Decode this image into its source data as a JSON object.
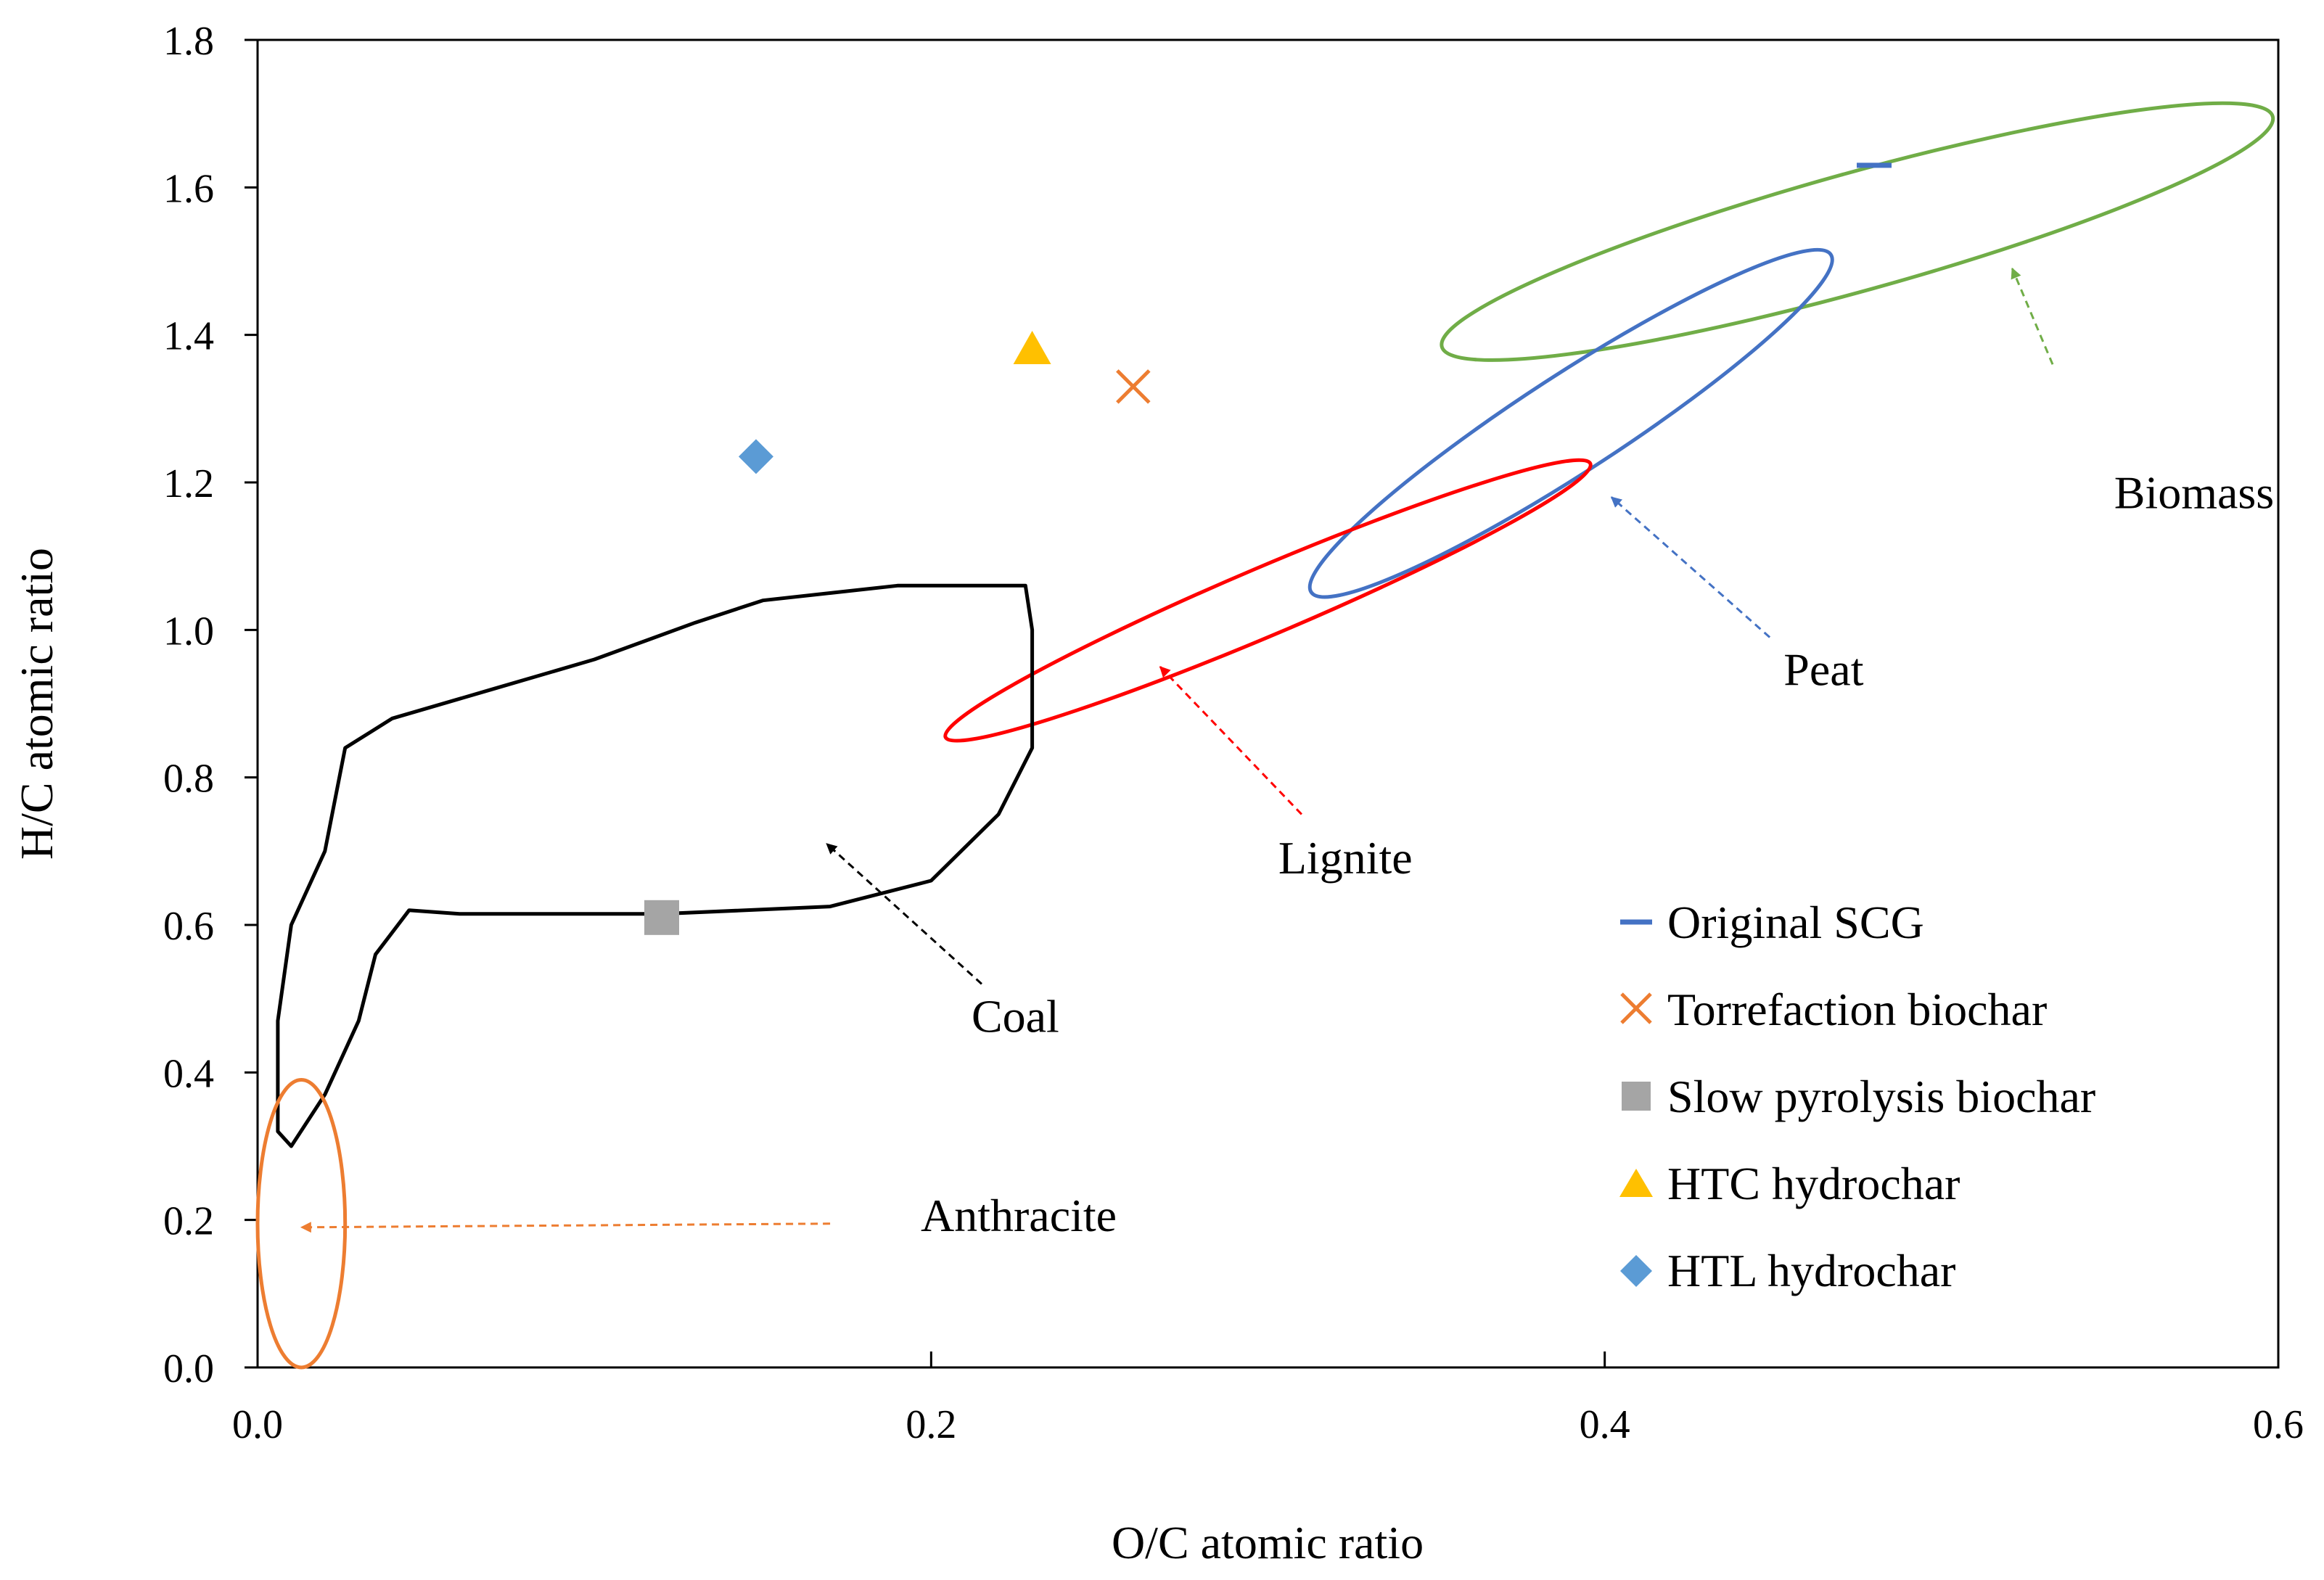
{
  "chart_data": {
    "type": "scatter",
    "title": "",
    "xlabel": "O/C atomic ratio",
    "ylabel": "H/C atomic ratio",
    "xlim": [
      0.0,
      0.6
    ],
    "ylim": [
      0.0,
      1.8
    ],
    "xticks": [
      0.0,
      0.2,
      0.4,
      0.6
    ],
    "xtick_labels": [
      "0.0",
      "0.2",
      "0.4",
      "0.6"
    ],
    "yticks": [
      0.0,
      0.2,
      0.4,
      0.6,
      0.8,
      1.0,
      1.2,
      1.4,
      1.6,
      1.8
    ],
    "ytick_labels": [
      "0.0",
      "0.2",
      "0.4",
      "0.6",
      "0.8",
      "1.0",
      "1.2",
      "1.4",
      "1.6",
      "1.8"
    ],
    "grid": false,
    "legend_position": "bottom-right",
    "series": [
      {
        "name": "Original SCG",
        "marker": "dash",
        "color": "#4472c4",
        "x": [
          0.48
        ],
        "y": [
          1.63
        ]
      },
      {
        "name": "Torrefaction biochar",
        "marker": "x",
        "color": "#ed7d31",
        "x": [
          0.26
        ],
        "y": [
          1.33
        ]
      },
      {
        "name": "Slow pyrolysis biochar",
        "marker": "square",
        "color": "#a5a5a5",
        "x": [
          0.12
        ],
        "y": [
          0.61
        ]
      },
      {
        "name": "HTC hydrochar",
        "marker": "triangle",
        "color": "#ffc000",
        "x": [
          0.23
        ],
        "y": [
          1.38
        ]
      },
      {
        "name": "HTL hydrochar",
        "marker": "diamond",
        "color": "#5b9bd5",
        "x": [
          0.148
        ],
        "y": [
          1.235
        ]
      }
    ],
    "regions": [
      {
        "name": "Biomass",
        "shape": "ellipse",
        "color": "#70ad47",
        "center": [
          0.475,
          1.54
        ],
        "rx": 0.128,
        "ry": 0.08,
        "angle": -15.5,
        "label_xy": [
          0.575,
          1.165
        ],
        "arrow_from": [
          0.533,
          1.36
        ],
        "arrow_to": [
          0.521,
          1.49
        ]
      },
      {
        "name": "Peat",
        "shape": "ellipse",
        "color": "#4472c4",
        "center": [
          0.39,
          1.28
        ],
        "rx": 0.092,
        "ry": 0.066,
        "angle": -33,
        "label_xy": [
          0.465,
          0.925
        ],
        "arrow_from": [
          0.449,
          0.99
        ],
        "arrow_to": [
          0.402,
          1.18
        ]
      },
      {
        "name": "Lignite",
        "shape": "ellipse",
        "color": "#ff0000",
        "center": [
          0.3,
          1.04
        ],
        "rx": 0.104,
        "ry": 0.046,
        "angle": -23,
        "label_xy": [
          0.323,
          0.67
        ],
        "arrow_from": [
          0.31,
          0.75
        ],
        "arrow_to": [
          0.268,
          0.95
        ]
      },
      {
        "name": "Coal",
        "shape": "polygon",
        "color": "#000000",
        "points": [
          [
            0.006,
            0.32
          ],
          [
            0.006,
            0.47
          ],
          [
            0.01,
            0.6
          ],
          [
            0.02,
            0.7
          ],
          [
            0.026,
            0.84
          ],
          [
            0.04,
            0.88
          ],
          [
            0.07,
            0.92
          ],
          [
            0.1,
            0.96
          ],
          [
            0.13,
            1.01
          ],
          [
            0.15,
            1.04
          ],
          [
            0.17,
            1.05
          ],
          [
            0.19,
            1.06
          ],
          [
            0.228,
            1.06
          ],
          [
            0.23,
            1.0
          ],
          [
            0.23,
            0.84
          ],
          [
            0.22,
            0.75
          ],
          [
            0.2,
            0.66
          ],
          [
            0.17,
            0.625
          ],
          [
            0.12,
            0.615
          ],
          [
            0.06,
            0.615
          ],
          [
            0.045,
            0.62
          ],
          [
            0.035,
            0.56
          ],
          [
            0.03,
            0.47
          ],
          [
            0.02,
            0.37
          ],
          [
            0.01,
            0.3
          ]
        ],
        "label_xy": [
          0.225,
          0.455
        ],
        "arrow_from": [
          0.215,
          0.52
        ],
        "arrow_to": [
          0.169,
          0.71
        ]
      },
      {
        "name": "Anthracite",
        "shape": "ellipse",
        "color": "#ed7d31",
        "center": [
          0.013,
          0.195
        ],
        "rx": 0.013,
        "ry": 0.195,
        "angle": 0,
        "label_xy": [
          0.226,
          0.185
        ],
        "arrow_from": [
          0.17,
          0.195
        ],
        "arrow_to": [
          0.013,
          0.19
        ]
      }
    ]
  }
}
